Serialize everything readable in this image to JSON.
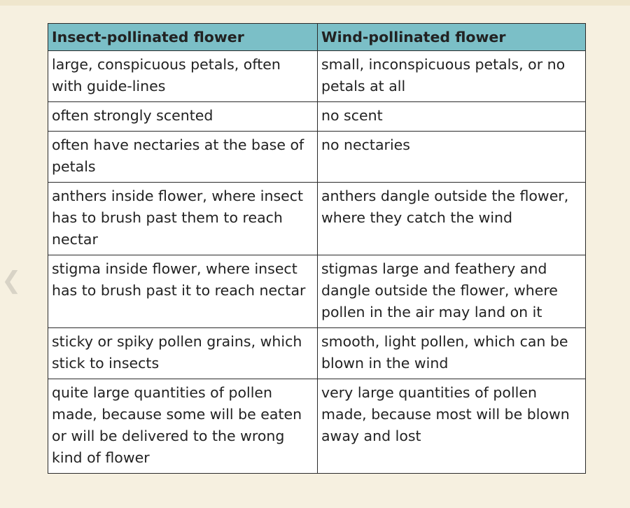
{
  "nav": {
    "prev_icon": "chevron-left-icon"
  },
  "colors": {
    "header_bg": "#7bbfc7",
    "page_bg": "#f6f0e0"
  },
  "table": {
    "headers": [
      "Insect-pollinated flower",
      "Wind-pollinated flower"
    ],
    "rows": [
      [
        "large, conspicuous petals, often with guide-lines",
        "small, inconspicuous petals, or no petals at all"
      ],
      [
        "often strongly scented",
        "no scent"
      ],
      [
        "often have nectaries at the base of petals",
        "no nectaries"
      ],
      [
        "anthers inside flower, where insect has to brush past them to reach nectar",
        "anthers dangle outside the flower, where they catch the wind"
      ],
      [
        "stigma inside flower, where insect has to brush past it to reach nectar",
        "stigmas large and feathery and dangle outside the flower, where pollen in the air may land on it"
      ],
      [
        "sticky or spiky pollen grains, which stick to insects",
        "smooth, light pollen, which can be blown in the wind"
      ],
      [
        "quite large quantities of pollen made, because some will be eaten or will be delivered to the wrong kind of flower",
        "very large quantities of pollen made, because most will be blown away and lost"
      ]
    ]
  }
}
